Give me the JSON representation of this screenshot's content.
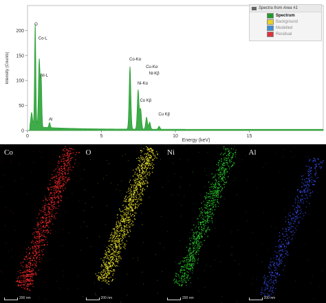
{
  "chart_data": {
    "type": "line",
    "xlabel": "Energy (keV)",
    "ylabel": "Intensity (Counts)",
    "xlim": [
      0,
      20
    ],
    "ylim": [
      0,
      250
    ],
    "xticks": [
      0,
      5,
      10,
      15
    ],
    "yticks": [
      0,
      50,
      100,
      150,
      200
    ],
    "series": [
      {
        "name": "Spectrum",
        "color": "#1e9c2a"
      }
    ],
    "peaks": [
      {
        "e": 0.28,
        "h": 28,
        "w": 0.06
      },
      {
        "e": 0.52,
        "h": 205,
        "w": 0.045
      },
      {
        "e": 0.78,
        "h": 118,
        "w": 0.05
      },
      {
        "e": 0.85,
        "h": 50,
        "w": 0.045
      },
      {
        "e": 0.93,
        "h": 92,
        "w": 0.04
      },
      {
        "e": 1.49,
        "h": 10,
        "w": 0.05
      },
      {
        "e": 6.93,
        "h": 125,
        "w": 0.06
      },
      {
        "e": 7.48,
        "h": 78,
        "w": 0.06
      },
      {
        "e": 7.65,
        "h": 40,
        "w": 0.06
      },
      {
        "e": 8.05,
        "h": 24,
        "w": 0.06
      },
      {
        "e": 8.26,
        "h": 14,
        "w": 0.06
      },
      {
        "e": 8.9,
        "h": 6,
        "w": 0.06
      }
    ],
    "peak_labels": [
      {
        "text": "O",
        "e": 0.52,
        "y": 210
      },
      {
        "text": "Co-L",
        "e": 0.78,
        "y": 182
      },
      {
        "text": "Ni-L",
        "e": 0.93,
        "y": 108
      },
      {
        "text": "Al",
        "e": 1.49,
        "y": 20
      },
      {
        "text": "Co-Kα",
        "e": 6.93,
        "y": 140
      },
      {
        "text": "Ni-Kα",
        "e": 7.48,
        "y": 92
      },
      {
        "text": "Cu-Kα",
        "e": 8.05,
        "y": 125
      },
      {
        "text": "Ni-Kβ",
        "e": 8.26,
        "y": 112
      },
      {
        "text": "Co Kβ",
        "e": 7.65,
        "y": 58
      },
      {
        "text": "Cu Kβ",
        "e": 8.9,
        "y": 30
      }
    ]
  },
  "legend": {
    "title": "Spectra from Area #1",
    "items": [
      {
        "label": "Spectrum",
        "color": "#1e9c2a"
      },
      {
        "label": "Background",
        "color": "#e8d32a"
      },
      {
        "label": "Modelled",
        "color": "#3a8fd8"
      },
      {
        "label": "Residual",
        "color": "#e0303a"
      }
    ]
  },
  "maps": [
    {
      "element": "Co",
      "color": "#ff2a2a",
      "scale_bar": "200 nm"
    },
    {
      "element": "O",
      "color": "#f2e82c",
      "scale_bar": "200 nm"
    },
    {
      "element": "Ni",
      "color": "#2bd82b",
      "scale_bar": "200 nm"
    },
    {
      "element": "Al",
      "color": "#3d52ff",
      "scale_bar": "200 nm"
    }
  ]
}
